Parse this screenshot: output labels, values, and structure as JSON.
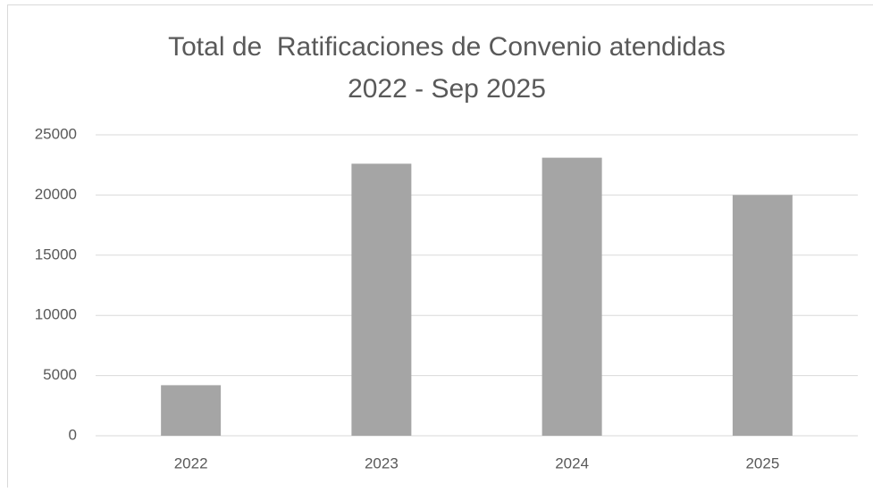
{
  "chart_data": {
    "type": "bar",
    "title": "Total de  Ratificaciones de Convenio atendidas",
    "subtitle": "2022 - Sep 2025",
    "categories": [
      "2022",
      "2023",
      "2024",
      "2025"
    ],
    "values": [
      4200,
      22600,
      23100,
      20000
    ],
    "color": "#a5a5a5",
    "ylim": [
      0,
      25000
    ],
    "yticks": [
      0,
      5000,
      10000,
      15000,
      20000,
      25000
    ],
    "grid": true
  }
}
